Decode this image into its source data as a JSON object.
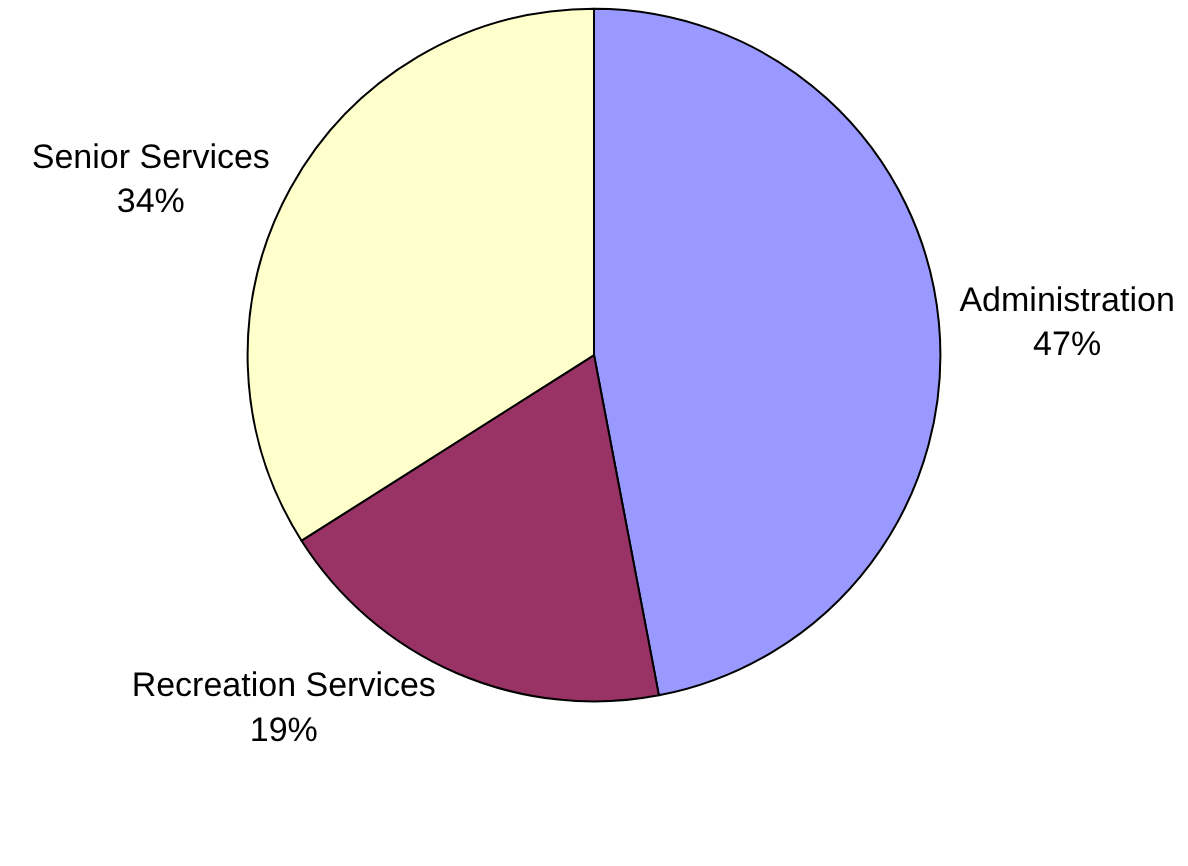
{
  "chart_data": {
    "type": "pie",
    "categories": [
      "Administration",
      "Recreation Services",
      "Senior Services"
    ],
    "values": [
      47,
      19,
      34
    ],
    "colors": [
      "#9999ff",
      "#993366",
      "#ffffcc"
    ],
    "value_labels": [
      "47%",
      "19%",
      "34%"
    ],
    "legend": false
  }
}
